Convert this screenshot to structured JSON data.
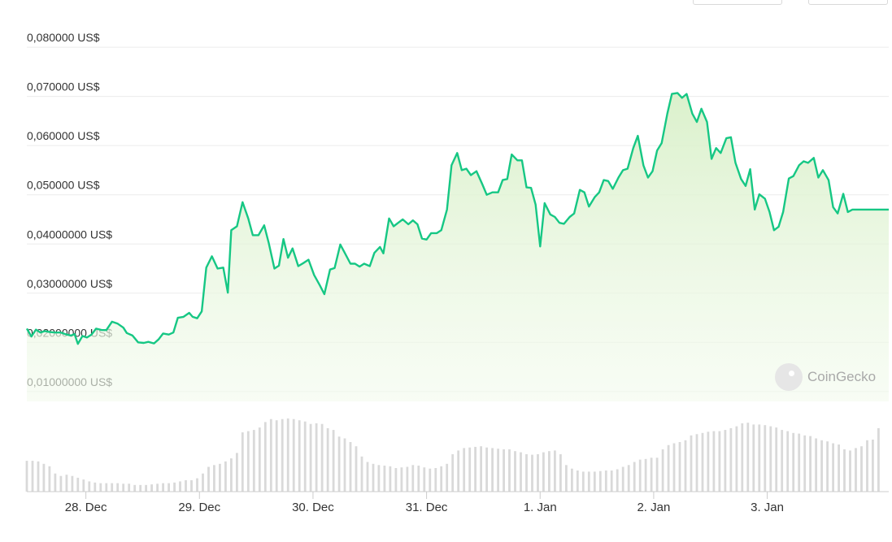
{
  "chart_data": {
    "type": "area",
    "currency_suffix": "US$",
    "y_ticks": [
      "0,080000 US$",
      "0,070000 US$",
      "0,060000 US$",
      "0,050000 US$",
      "0,04000000 US$",
      "0,03000000 US$",
      "0,02000000 US$",
      "0,01000000 US$"
    ],
    "y_tick_values": [
      0.08,
      0.07,
      0.06,
      0.05,
      0.04,
      0.03,
      0.02,
      0.01
    ],
    "x_ticks": [
      {
        "label": "28. Dec",
        "day": 28.0
      },
      {
        "label": "29. Dec",
        "day": 29.0
      },
      {
        "label": "30. Dec",
        "day": 30.0
      },
      {
        "label": "31. Dec",
        "day": 31.0
      },
      {
        "label": "1. Jan",
        "day": 32.0
      },
      {
        "label": "2. Jan",
        "day": 33.0
      },
      {
        "label": "3. Jan",
        "day": 34.0
      }
    ],
    "ylim": [
      0.008,
      0.0815
    ],
    "xlim": [
      27.48,
      35.07
    ],
    "line_color": "#16c784",
    "fill_color": "#e3f5d9",
    "volume_color": "#d9d9d9",
    "price_series": [
      [
        27.48,
        0.0228
      ],
      [
        27.52,
        0.0212
      ],
      [
        27.56,
        0.0226
      ],
      [
        27.6,
        0.022
      ],
      [
        27.64,
        0.0223
      ],
      [
        27.68,
        0.0221
      ],
      [
        27.73,
        0.022
      ],
      [
        27.78,
        0.022
      ],
      [
        27.83,
        0.0216
      ],
      [
        27.87,
        0.0214
      ],
      [
        27.9,
        0.0217
      ],
      [
        27.93,
        0.0197
      ],
      [
        27.97,
        0.0213
      ],
      [
        28.01,
        0.021
      ],
      [
        28.05,
        0.0216
      ],
      [
        28.09,
        0.0228
      ],
      [
        28.14,
        0.0225
      ],
      [
        28.18,
        0.0225
      ],
      [
        28.23,
        0.0242
      ],
      [
        28.28,
        0.0238
      ],
      [
        28.33,
        0.023
      ],
      [
        28.36,
        0.0219
      ],
      [
        28.41,
        0.0214
      ],
      [
        28.46,
        0.02
      ],
      [
        28.51,
        0.0199
      ],
      [
        28.55,
        0.0201
      ],
      [
        28.6,
        0.0198
      ],
      [
        28.64,
        0.0206
      ],
      [
        28.68,
        0.0218
      ],
      [
        28.73,
        0.0216
      ],
      [
        28.77,
        0.022
      ],
      [
        28.81,
        0.025
      ],
      [
        28.86,
        0.0252
      ],
      [
        28.91,
        0.026
      ],
      [
        28.94,
        0.0252
      ],
      [
        28.98,
        0.0249
      ],
      [
        29.02,
        0.0263
      ],
      [
        29.06,
        0.0352
      ],
      [
        29.11,
        0.0375
      ],
      [
        29.16,
        0.035
      ],
      [
        29.21,
        0.0352
      ],
      [
        29.25,
        0.0301
      ],
      [
        29.28,
        0.0428
      ],
      [
        29.33,
        0.0436
      ],
      [
        29.38,
        0.0485
      ],
      [
        29.43,
        0.0452
      ],
      [
        29.47,
        0.0418
      ],
      [
        29.52,
        0.0418
      ],
      [
        29.57,
        0.0438
      ],
      [
        29.61,
        0.0402
      ],
      [
        29.66,
        0.035
      ],
      [
        29.7,
        0.0356
      ],
      [
        29.74,
        0.041
      ],
      [
        29.78,
        0.0372
      ],
      [
        29.82,
        0.0391
      ],
      [
        29.87,
        0.0355
      ],
      [
        29.92,
        0.0362
      ],
      [
        29.96,
        0.0368
      ],
      [
        30.01,
        0.0337
      ],
      [
        30.06,
        0.0316
      ],
      [
        30.1,
        0.0298
      ],
      [
        30.15,
        0.0348
      ],
      [
        30.19,
        0.0351
      ],
      [
        30.24,
        0.0399
      ],
      [
        30.28,
        0.0382
      ],
      [
        30.33,
        0.036
      ],
      [
        30.37,
        0.036
      ],
      [
        30.41,
        0.0354
      ],
      [
        30.45,
        0.036
      ],
      [
        30.5,
        0.0355
      ],
      [
        30.54,
        0.0382
      ],
      [
        30.59,
        0.0394
      ],
      [
        30.62,
        0.0381
      ],
      [
        30.67,
        0.0452
      ],
      [
        30.71,
        0.0436
      ],
      [
        30.75,
        0.0443
      ],
      [
        30.79,
        0.045
      ],
      [
        30.84,
        0.044
      ],
      [
        30.88,
        0.0448
      ],
      [
        30.92,
        0.044
      ],
      [
        30.96,
        0.0411
      ],
      [
        31.0,
        0.0409
      ],
      [
        31.04,
        0.0422
      ],
      [
        31.09,
        0.0422
      ],
      [
        31.13,
        0.0428
      ],
      [
        31.18,
        0.047
      ],
      [
        31.22,
        0.056
      ],
      [
        31.27,
        0.0585
      ],
      [
        31.31,
        0.055
      ],
      [
        31.35,
        0.0553
      ],
      [
        31.39,
        0.054
      ],
      [
        31.44,
        0.0548
      ],
      [
        31.49,
        0.0522
      ],
      [
        31.53,
        0.05
      ],
      [
        31.58,
        0.0505
      ],
      [
        31.63,
        0.0505
      ],
      [
        31.67,
        0.053
      ],
      [
        31.71,
        0.0532
      ],
      [
        31.75,
        0.0582
      ],
      [
        31.8,
        0.057
      ],
      [
        31.84,
        0.057
      ],
      [
        31.88,
        0.0515
      ],
      [
        31.92,
        0.0514
      ],
      [
        31.96,
        0.048
      ],
      [
        32.0,
        0.0395
      ],
      [
        32.04,
        0.0483
      ],
      [
        32.09,
        0.046
      ],
      [
        32.13,
        0.0455
      ],
      [
        32.17,
        0.0443
      ],
      [
        32.21,
        0.0441
      ],
      [
        32.26,
        0.0455
      ],
      [
        32.3,
        0.0462
      ],
      [
        32.35,
        0.051
      ],
      [
        32.39,
        0.0505
      ],
      [
        32.43,
        0.0476
      ],
      [
        32.48,
        0.0495
      ],
      [
        32.52,
        0.0505
      ],
      [
        32.56,
        0.053
      ],
      [
        32.6,
        0.0528
      ],
      [
        32.64,
        0.0512
      ],
      [
        32.69,
        0.0535
      ],
      [
        32.73,
        0.055
      ],
      [
        32.77,
        0.0553
      ],
      [
        32.82,
        0.0595
      ],
      [
        32.86,
        0.062
      ],
      [
        32.91,
        0.056
      ],
      [
        32.95,
        0.0535
      ],
      [
        32.99,
        0.0548
      ],
      [
        33.03,
        0.059
      ],
      [
        33.07,
        0.0605
      ],
      [
        33.12,
        0.0665
      ],
      [
        33.16,
        0.0705
      ],
      [
        33.21,
        0.0707
      ],
      [
        33.25,
        0.0697
      ],
      [
        33.29,
        0.0705
      ],
      [
        33.34,
        0.0665
      ],
      [
        33.38,
        0.0648
      ],
      [
        33.42,
        0.0675
      ],
      [
        33.47,
        0.0648
      ],
      [
        33.51,
        0.0573
      ],
      [
        33.55,
        0.0595
      ],
      [
        33.59,
        0.0585
      ],
      [
        33.64,
        0.0615
      ],
      [
        33.68,
        0.0617
      ],
      [
        33.72,
        0.0565
      ],
      [
        33.77,
        0.0532
      ],
      [
        33.81,
        0.0518
      ],
      [
        33.85,
        0.0552
      ],
      [
        33.89,
        0.047
      ],
      [
        33.93,
        0.0501
      ],
      [
        33.98,
        0.0492
      ],
      [
        34.02,
        0.0465
      ],
      [
        34.06,
        0.0428
      ],
      [
        34.1,
        0.0435
      ],
      [
        34.14,
        0.0465
      ],
      [
        34.19,
        0.0533
      ],
      [
        34.23,
        0.0538
      ],
      [
        34.28,
        0.056
      ],
      [
        34.32,
        0.0568
      ],
      [
        34.36,
        0.0565
      ],
      [
        34.41,
        0.0575
      ],
      [
        34.45,
        0.0535
      ],
      [
        34.49,
        0.055
      ],
      [
        34.54,
        0.053
      ],
      [
        34.58,
        0.0475
      ],
      [
        34.62,
        0.0462
      ],
      [
        34.67,
        0.0502
      ],
      [
        34.71,
        0.0465
      ],
      [
        34.75,
        0.047
      ],
      [
        35.07,
        0.047
      ]
    ],
    "volume_series": [
      [
        27.48,
        0.51
      ],
      [
        27.53,
        0.51
      ],
      [
        27.58,
        0.5
      ],
      [
        27.63,
        0.46
      ],
      [
        27.68,
        0.42
      ],
      [
        27.73,
        0.3
      ],
      [
        27.78,
        0.26
      ],
      [
        27.83,
        0.28
      ],
      [
        27.88,
        0.26
      ],
      [
        27.93,
        0.23
      ],
      [
        27.98,
        0.2
      ],
      [
        28.03,
        0.17
      ],
      [
        28.08,
        0.15
      ],
      [
        28.13,
        0.14
      ],
      [
        28.18,
        0.14
      ],
      [
        28.23,
        0.14
      ],
      [
        28.28,
        0.14
      ],
      [
        28.33,
        0.13
      ],
      [
        28.38,
        0.13
      ],
      [
        28.43,
        0.11
      ],
      [
        28.48,
        0.11
      ],
      [
        28.53,
        0.11
      ],
      [
        28.58,
        0.12
      ],
      [
        28.63,
        0.13
      ],
      [
        28.68,
        0.14
      ],
      [
        28.73,
        0.14
      ],
      [
        28.78,
        0.15
      ],
      [
        28.83,
        0.17
      ],
      [
        28.88,
        0.19
      ],
      [
        28.93,
        0.19
      ],
      [
        28.98,
        0.22
      ],
      [
        29.03,
        0.3
      ],
      [
        29.08,
        0.41
      ],
      [
        29.13,
        0.44
      ],
      [
        29.18,
        0.46
      ],
      [
        29.23,
        0.5
      ],
      [
        29.28,
        0.55
      ],
      [
        29.33,
        0.64
      ],
      [
        29.38,
        0.98
      ],
      [
        29.43,
        1.0
      ],
      [
        29.48,
        1.02
      ],
      [
        29.53,
        1.06
      ],
      [
        29.58,
        1.15
      ],
      [
        29.63,
        1.2
      ],
      [
        29.68,
        1.18
      ],
      [
        29.73,
        1.2
      ],
      [
        29.78,
        1.21
      ],
      [
        29.83,
        1.2
      ],
      [
        29.88,
        1.18
      ],
      [
        29.93,
        1.16
      ],
      [
        29.98,
        1.12
      ],
      [
        30.03,
        1.13
      ],
      [
        30.08,
        1.12
      ],
      [
        30.13,
        1.05
      ],
      [
        30.18,
        1.02
      ],
      [
        30.23,
        0.91
      ],
      [
        30.28,
        0.88
      ],
      [
        30.33,
        0.82
      ],
      [
        30.38,
        0.75
      ],
      [
        30.43,
        0.58
      ],
      [
        30.48,
        0.49
      ],
      [
        30.53,
        0.46
      ],
      [
        30.58,
        0.44
      ],
      [
        30.63,
        0.43
      ],
      [
        30.68,
        0.42
      ],
      [
        30.73,
        0.39
      ],
      [
        30.78,
        0.4
      ],
      [
        30.83,
        0.41
      ],
      [
        30.88,
        0.44
      ],
      [
        30.93,
        0.43
      ],
      [
        30.98,
        0.4
      ],
      [
        31.03,
        0.38
      ],
      [
        31.08,
        0.39
      ],
      [
        31.13,
        0.42
      ],
      [
        31.18,
        0.46
      ],
      [
        31.23,
        0.62
      ],
      [
        31.28,
        0.68
      ],
      [
        31.33,
        0.72
      ],
      [
        31.38,
        0.73
      ],
      [
        31.43,
        0.74
      ],
      [
        31.48,
        0.75
      ],
      [
        31.53,
        0.73
      ],
      [
        31.58,
        0.72
      ],
      [
        31.63,
        0.71
      ],
      [
        31.68,
        0.7
      ],
      [
        31.73,
        0.7
      ],
      [
        31.78,
        0.67
      ],
      [
        31.83,
        0.65
      ],
      [
        31.88,
        0.62
      ],
      [
        31.93,
        0.61
      ],
      [
        31.98,
        0.62
      ],
      [
        32.03,
        0.65
      ],
      [
        32.08,
        0.67
      ],
      [
        32.13,
        0.68
      ],
      [
        32.18,
        0.62
      ],
      [
        32.23,
        0.44
      ],
      [
        32.28,
        0.38
      ],
      [
        32.33,
        0.35
      ],
      [
        32.38,
        0.33
      ],
      [
        32.43,
        0.33
      ],
      [
        32.48,
        0.33
      ],
      [
        32.53,
        0.34
      ],
      [
        32.58,
        0.35
      ],
      [
        32.63,
        0.35
      ],
      [
        32.68,
        0.37
      ],
      [
        32.73,
        0.41
      ],
      [
        32.78,
        0.44
      ],
      [
        32.83,
        0.49
      ],
      [
        32.88,
        0.53
      ],
      [
        32.93,
        0.54
      ],
      [
        32.98,
        0.56
      ],
      [
        33.03,
        0.56
      ],
      [
        33.08,
        0.7
      ],
      [
        33.13,
        0.77
      ],
      [
        33.18,
        0.8
      ],
      [
        33.23,
        0.82
      ],
      [
        33.28,
        0.85
      ],
      [
        33.33,
        0.93
      ],
      [
        33.38,
        0.95
      ],
      [
        33.43,
        0.97
      ],
      [
        33.48,
        0.99
      ],
      [
        33.53,
        1.0
      ],
      [
        33.58,
        1.0
      ],
      [
        33.63,
        1.02
      ],
      [
        33.68,
        1.05
      ],
      [
        33.73,
        1.08
      ],
      [
        33.78,
        1.13
      ],
      [
        33.83,
        1.14
      ],
      [
        33.88,
        1.11
      ],
      [
        33.93,
        1.11
      ],
      [
        33.98,
        1.1
      ],
      [
        34.03,
        1.08
      ],
      [
        34.08,
        1.06
      ],
      [
        34.13,
        1.02
      ],
      [
        34.18,
        1.0
      ],
      [
        34.23,
        0.97
      ],
      [
        34.28,
        0.96
      ],
      [
        34.33,
        0.93
      ],
      [
        34.38,
        0.92
      ],
      [
        34.43,
        0.88
      ],
      [
        34.48,
        0.85
      ],
      [
        34.53,
        0.83
      ],
      [
        34.58,
        0.8
      ],
      [
        34.63,
        0.78
      ],
      [
        34.68,
        0.7
      ],
      [
        34.73,
        0.68
      ],
      [
        34.78,
        0.72
      ],
      [
        34.83,
        0.75
      ],
      [
        34.88,
        0.85
      ],
      [
        34.93,
        0.86
      ],
      [
        34.98,
        1.05
      ]
    ]
  },
  "watermark": {
    "text": "CoinGecko",
    "icon": "coingecko-logo-icon"
  }
}
